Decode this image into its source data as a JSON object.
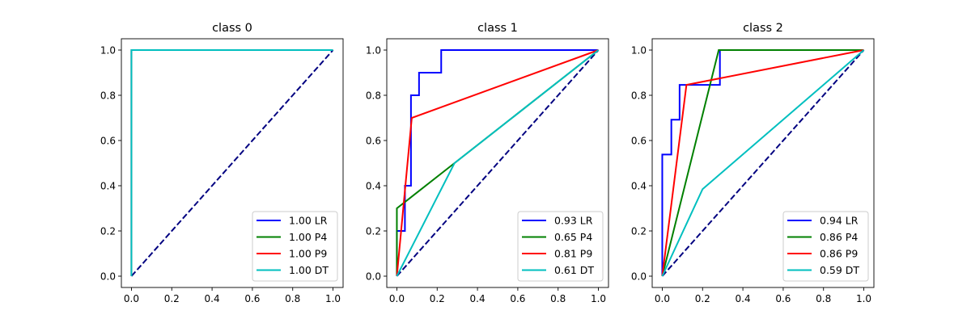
{
  "chart_data": [
    {
      "type": "line",
      "title": "class 0",
      "xlabel": "",
      "ylabel": "",
      "xlim": [
        -0.05,
        1.05
      ],
      "ylim": [
        -0.05,
        1.05
      ],
      "xticks": [
        "0.0",
        "0.2",
        "0.4",
        "0.6",
        "0.8",
        "1.0"
      ],
      "yticks": [
        "0.0",
        "0.2",
        "0.4",
        "0.6",
        "0.8",
        "1.0"
      ],
      "legend_position": "lower-right",
      "grid": false,
      "diagonal": {
        "points": [
          [
            0,
            0
          ],
          [
            1,
            1
          ]
        ],
        "color": "#000080",
        "style": "dashed"
      },
      "series": [
        {
          "name": "1.00 LR",
          "color": "#0000ff",
          "points": [
            [
              0,
              0
            ],
            [
              0,
              1
            ],
            [
              1,
              1
            ]
          ]
        },
        {
          "name": "1.00 P4",
          "color": "#008000",
          "points": [
            [
              0,
              0
            ],
            [
              0,
              1
            ],
            [
              1,
              1
            ]
          ]
        },
        {
          "name": "1.00 P9",
          "color": "#ff0000",
          "points": [
            [
              0,
              0
            ],
            [
              0,
              1
            ],
            [
              1,
              1
            ]
          ]
        },
        {
          "name": "1.00 DT",
          "color": "#00bfbf",
          "points": [
            [
              0,
              0
            ],
            [
              0,
              1
            ],
            [
              1,
              1
            ]
          ]
        }
      ]
    },
    {
      "type": "line",
      "title": "class 1",
      "xlabel": "",
      "ylabel": "",
      "xlim": [
        -0.05,
        1.05
      ],
      "ylim": [
        -0.05,
        1.05
      ],
      "xticks": [
        "0.0",
        "0.2",
        "0.4",
        "0.6",
        "0.8",
        "1.0"
      ],
      "yticks": [
        "0.0",
        "0.2",
        "0.4",
        "0.6",
        "0.8",
        "1.0"
      ],
      "legend_position": "lower-right",
      "grid": false,
      "diagonal": {
        "points": [
          [
            0,
            0
          ],
          [
            1,
            1
          ]
        ],
        "color": "#000080",
        "style": "dashed"
      },
      "series": [
        {
          "name": "0.93 LR",
          "color": "#0000ff",
          "points": [
            [
              0,
              0
            ],
            [
              0,
              0.2
            ],
            [
              0.04,
              0.2
            ],
            [
              0.04,
              0.4
            ],
            [
              0.07,
              0.4
            ],
            [
              0.07,
              0.8
            ],
            [
              0.11,
              0.8
            ],
            [
              0.11,
              0.9
            ],
            [
              0.22,
              0.9
            ],
            [
              0.22,
              1
            ],
            [
              1,
              1
            ]
          ]
        },
        {
          "name": "0.65 P4",
          "color": "#008000",
          "points": [
            [
              0,
              0
            ],
            [
              0,
              0.3
            ],
            [
              0.286,
              0.5
            ],
            [
              1,
              1
            ]
          ]
        },
        {
          "name": "0.81 P9",
          "color": "#ff0000",
          "points": [
            [
              0,
              0
            ],
            [
              0.074,
              0.7
            ],
            [
              1,
              1
            ]
          ]
        },
        {
          "name": "0.61 DT",
          "color": "#00bfbf",
          "points": [
            [
              0,
              0
            ],
            [
              0.286,
              0.5
            ],
            [
              1,
              1
            ]
          ]
        }
      ]
    },
    {
      "type": "line",
      "title": "class 2",
      "xlabel": "",
      "ylabel": "",
      "xlim": [
        -0.05,
        1.05
      ],
      "ylim": [
        -0.05,
        1.05
      ],
      "xticks": [
        "0.0",
        "0.2",
        "0.4",
        "0.6",
        "0.8",
        "1.0"
      ],
      "yticks": [
        "0.0",
        "0.2",
        "0.4",
        "0.6",
        "0.8",
        "1.0"
      ],
      "legend_position": "lower-right",
      "grid": false,
      "diagonal": {
        "points": [
          [
            0,
            0
          ],
          [
            1,
            1
          ]
        ],
        "color": "#000080",
        "style": "dashed"
      },
      "series": [
        {
          "name": "0.94 LR",
          "color": "#0000ff",
          "points": [
            [
              0,
              0
            ],
            [
              0,
              0.538
            ],
            [
              0.045,
              0.538
            ],
            [
              0.045,
              0.692
            ],
            [
              0.086,
              0.692
            ],
            [
              0.086,
              0.846
            ],
            [
              0.286,
              0.846
            ],
            [
              0.286,
              1
            ],
            [
              1,
              1
            ]
          ]
        },
        {
          "name": "0.86 P4",
          "color": "#008000",
          "points": [
            [
              0,
              0
            ],
            [
              0.28,
              1
            ],
            [
              1,
              1
            ]
          ]
        },
        {
          "name": "0.86 P9",
          "color": "#ff0000",
          "points": [
            [
              0,
              0
            ],
            [
              0.12,
              0.846
            ],
            [
              1,
              1
            ]
          ]
        },
        {
          "name": "0.59 DT",
          "color": "#00bfbf",
          "points": [
            [
              0,
              0
            ],
            [
              0.2,
              0.385
            ],
            [
              1,
              1
            ]
          ]
        }
      ]
    }
  ]
}
